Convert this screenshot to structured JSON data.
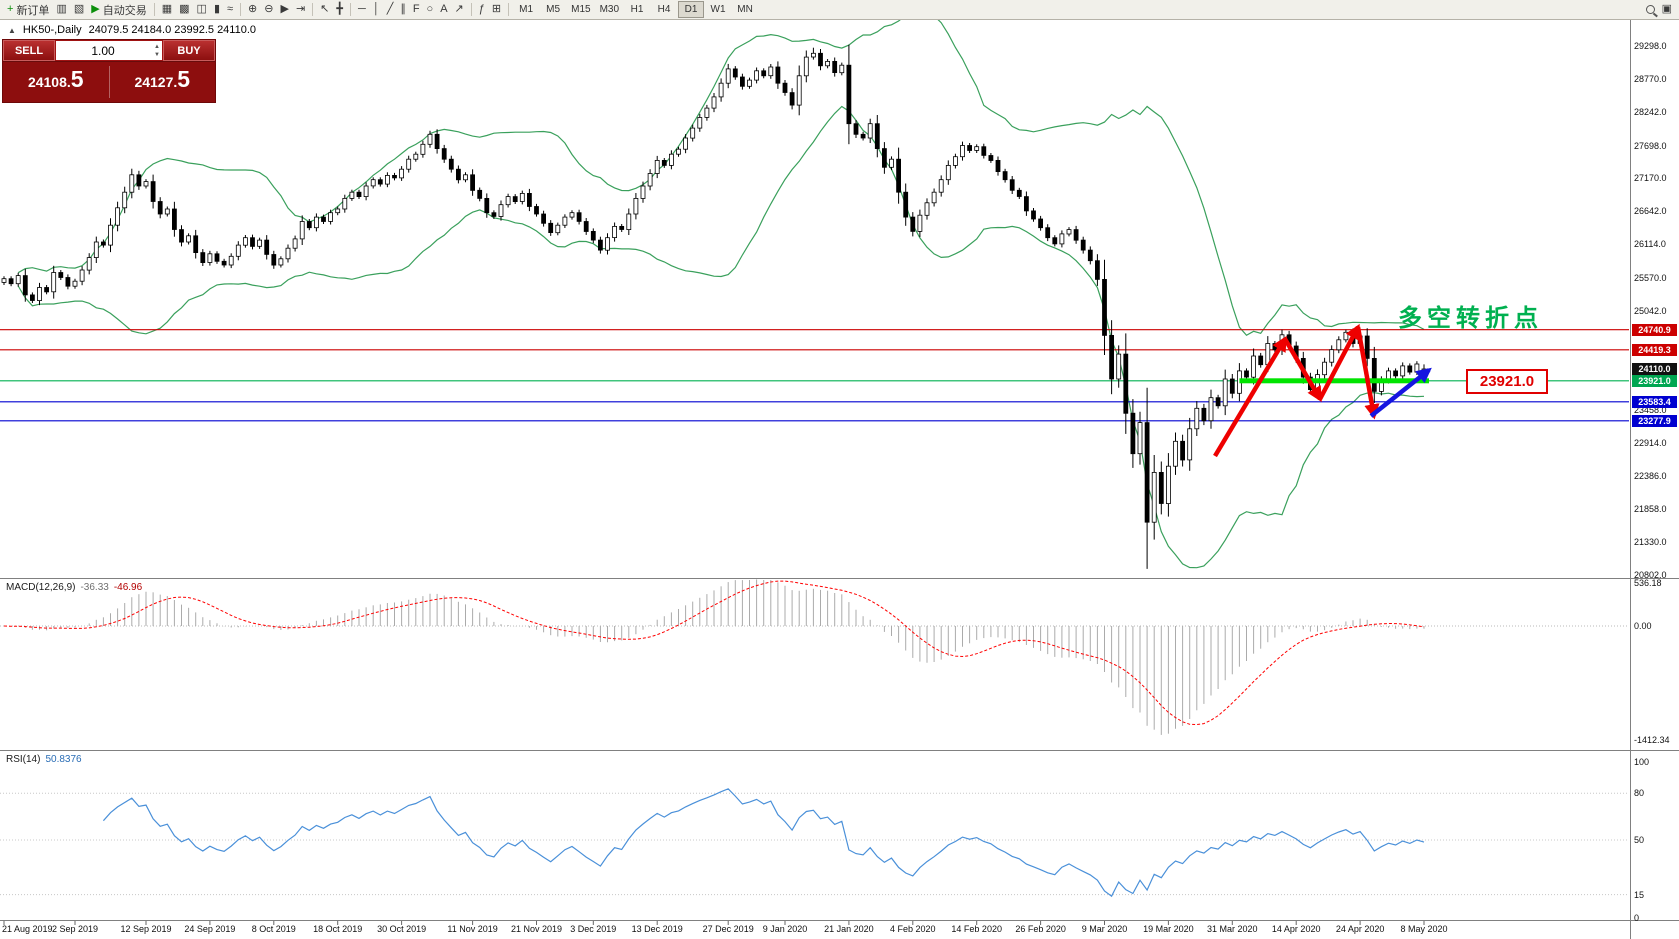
{
  "window": {
    "title_symbol": "HK50-,Daily",
    "ohlc": "24079.5 24184.0 23992.5 24110.0"
  },
  "toolbar": {
    "new_order_label": "新订单",
    "auto_trading_label": "自动交易",
    "timeframes": [
      "M1",
      "M5",
      "M15",
      "M30",
      "H1",
      "H4",
      "D1",
      "W1",
      "MN"
    ],
    "active_timeframe": "D1",
    "items": [
      {
        "type": "button",
        "name": "new-order-button",
        "icon": "plus-chart-icon",
        "glyph": "+",
        "glyph_color": "#0b8f0b",
        "label": "新订单"
      },
      {
        "type": "button",
        "name": "charts-icon",
        "glyph": "▥"
      },
      {
        "type": "button",
        "name": "profile-icon",
        "glyph": "▧"
      },
      {
        "type": "button",
        "name": "auto-trading-button",
        "icon": "play-icon",
        "glyph": "▶",
        "glyph_color": "#0b8f0b",
        "label": "自动交易"
      },
      {
        "type": "sep"
      },
      {
        "type": "button",
        "name": "tile-windows-icon",
        "glyph": "▦"
      },
      {
        "type": "button",
        "name": "cascade-windows-icon",
        "glyph": "▩"
      },
      {
        "type": "button",
        "name": "bar-chart-icon",
        "glyph": "◫"
      },
      {
        "type": "button",
        "name": "candlestick-chart-icon",
        "glyph": "▮"
      },
      {
        "type": "button",
        "name": "line-chart-icon",
        "glyph": "≈"
      },
      {
        "type": "sep"
      },
      {
        "type": "button",
        "name": "zoom-in-icon",
        "glyph": "⊕"
      },
      {
        "type": "button",
        "name": "zoom-out-icon",
        "glyph": "⊖"
      },
      {
        "type": "button",
        "name": "auto-scroll-icon",
        "glyph": "▶"
      },
      {
        "type": "button",
        "name": "chart-shift-icon",
        "glyph": "⇥"
      },
      {
        "type": "sep"
      },
      {
        "type": "button",
        "name": "cursor-icon",
        "glyph": "↖"
      },
      {
        "type": "button",
        "name": "crosshair-icon",
        "glyph": "╋"
      },
      {
        "type": "sep"
      },
      {
        "type": "button",
        "name": "horizontal-line-icon",
        "glyph": "─"
      },
      {
        "type": "button",
        "name": "vertical-line-icon",
        "glyph": "│"
      },
      {
        "type": "button",
        "name": "trendline-icon",
        "glyph": "╱"
      },
      {
        "type": "button",
        "name": "channel-icon",
        "glyph": "∥"
      },
      {
        "type": "button",
        "name": "fibonacci-icon",
        "glyph": "F"
      },
      {
        "type": "button",
        "name": "shapes-icon",
        "glyph": "○"
      },
      {
        "type": "button",
        "name": "text-icon",
        "glyph": "A"
      },
      {
        "type": "button",
        "name": "arrow-tools-icon",
        "glyph": "↗"
      },
      {
        "type": "sep"
      },
      {
        "type": "button",
        "name": "indicators-icon",
        "glyph": "ƒ"
      },
      {
        "type": "button",
        "name": "grid-icon",
        "glyph": "⊞"
      },
      {
        "type": "sep"
      },
      {
        "type": "timeframes"
      },
      {
        "type": "spacer"
      },
      {
        "type": "search"
      },
      {
        "type": "button",
        "name": "layout-icon",
        "glyph": "▣"
      }
    ]
  },
  "trade_panel": {
    "sell_label": "SELL",
    "buy_label": "BUY",
    "volume": "1.00",
    "sell_price": "24108.",
    "sell_big": "5",
    "buy_price": "24127.",
    "buy_big": "5"
  },
  "price_axis": {
    "labels": [
      "29298.0",
      "28770.0",
      "28242.0",
      "27698.0",
      "27170.0",
      "26642.0",
      "26114.0",
      "25570.0",
      "25042.0",
      "23458.0",
      "22914.0",
      "22386.0",
      "21858.0",
      "21330.0",
      "20802.0"
    ]
  },
  "levels": [
    {
      "value": 24740.9,
      "label": "24740.9",
      "line_color": "#cc0000",
      "tag_bg": "#cc0000"
    },
    {
      "value": 24419.3,
      "label": "24419.3",
      "line_color": "#cc0000",
      "tag_bg": "#cc0000"
    },
    {
      "value": 24110.0,
      "label": "24110.0",
      "line_color": null,
      "tag_bg": "#111111"
    },
    {
      "value": 23921.0,
      "label": "23921.0",
      "line_color": "#00b050",
      "tag_bg": "#00a651"
    },
    {
      "value": 23583.4,
      "label": "23583.4",
      "line_color": "#0000d0",
      "tag_bg": "#0000d0"
    },
    {
      "value": 23277.9,
      "label": "23277.9",
      "line_color": "#0000d0",
      "tag_bg": "#0000d0"
    }
  ],
  "annotations": {
    "turning_point_text": "多空转折点",
    "turning_point_color": "#00b050",
    "price_callout": "23921.0",
    "support_band": {
      "from_index": 174,
      "to_index": 200,
      "price": 23921.0,
      "color": "#00e400"
    },
    "red_path": [
      [
        1215,
        456
      ],
      [
        1285,
        339
      ],
      [
        1320,
        399
      ],
      [
        1358,
        327
      ],
      [
        1374,
        416
      ]
    ],
    "blue_arrow": [
      [
        1371,
        416
      ],
      [
        1429,
        370
      ]
    ],
    "red_color": "#ee0000",
    "blue_color": "#1515e0"
  },
  "indicators": {
    "macd": {
      "name": "MACD(12,26,9)",
      "value_main": "-36.33",
      "value_signal": "-46.96",
      "axis": [
        "536.18",
        "0.00",
        "-1412.34"
      ]
    },
    "rsi": {
      "name": "RSI(14)",
      "value": "50.8376",
      "axis": [
        "100",
        "80",
        "50",
        "15",
        "0"
      ],
      "levels": [
        80,
        50,
        15
      ]
    }
  },
  "chart_data": {
    "type": "candlestick",
    "symbol": "HK50",
    "timeframe": "Daily",
    "title": "HK50-,Daily",
    "ohlc_current": {
      "open": 24079.5,
      "high": 24184.0,
      "low": 23992.5,
      "close": 24110.0
    },
    "bid": 24108.5,
    "ask": 24127.5,
    "y_axis": {
      "top": 29298.0,
      "bottom": 20802.0
    },
    "bollinger": {
      "period": 20,
      "deviation": 2,
      "color": "#3aa05c"
    },
    "macd_axis": {
      "max": 536.18,
      "zero": 0.0,
      "min": -1412.34
    },
    "candles": {
      "closes": [
        25560,
        25480,
        25610,
        25300,
        25210,
        25420,
        25350,
        25660,
        25580,
        25440,
        25520,
        25700,
        25900,
        26150,
        26100,
        26420,
        26700,
        26950,
        27230,
        27050,
        27120,
        26800,
        26600,
        26680,
        26350,
        26150,
        26250,
        25980,
        25820,
        25960,
        25840,
        25780,
        25920,
        26100,
        26220,
        26080,
        26180,
        25950,
        25780,
        25880,
        26050,
        26200,
        26480,
        26380,
        26550,
        26480,
        26620,
        26680,
        26850,
        26950,
        26880,
        27050,
        27150,
        27080,
        27220,
        27180,
        27320,
        27480,
        27560,
        27720,
        27880,
        27650,
        27480,
        27320,
        27150,
        27230,
        26980,
        26850,
        26620,
        26560,
        26750,
        26880,
        26800,
        26930,
        26720,
        26600,
        26450,
        26300,
        26420,
        26550,
        26620,
        26480,
        26320,
        26180,
        26020,
        26220,
        26400,
        26350,
        26600,
        26850,
        27050,
        27250,
        27460,
        27380,
        27560,
        27640,
        27820,
        27980,
        28150,
        28300,
        28480,
        28700,
        28930,
        28800,
        28650,
        28750,
        28900,
        28820,
        28960,
        28700,
        28550,
        28350,
        28820,
        29120,
        29180,
        28980,
        29050,
        28870,
        28990,
        28050,
        27880,
        27820,
        28050,
        27650,
        27350,
        27480,
        26950,
        26550,
        26320,
        26580,
        26780,
        26950,
        27150,
        27380,
        27520,
        27700,
        27620,
        27680,
        27540,
        27460,
        27280,
        27150,
        26980,
        26880,
        26650,
        26520,
        26380,
        26220,
        26120,
        26280,
        26350,
        26180,
        26020,
        25850,
        25550,
        24650,
        23950,
        24350,
        23400,
        22750,
        23250,
        21650,
        22450,
        21950,
        22550,
        22950,
        22650,
        23150,
        23480,
        23280,
        23650,
        23520,
        23950,
        23720,
        24080,
        23980,
        24320,
        24180,
        24520,
        24420,
        24660,
        24480,
        24280,
        23980,
        23780,
        24020,
        24220,
        24420,
        24580,
        24700,
        24520,
        24640,
        24280,
        23750,
        23930,
        24080,
        24000,
        24160,
        24060,
        24190,
        24110
      ],
      "extremes": {
        "highest_index": 114,
        "highest_high": 29270,
        "lowest_index": 161,
        "lowest_low": 20900
      }
    },
    "dates": [
      {
        "label": "21 Aug 2019",
        "index": 0
      },
      {
        "label": "2 Sep 2019",
        "index": 10
      },
      {
        "label": "12 Sep 2019",
        "index": 20
      },
      {
        "label": "24 Sep 2019",
        "index": 29
      },
      {
        "label": "8 Oct 2019",
        "index": 38
      },
      {
        "label": "18 Oct 2019",
        "index": 47
      },
      {
        "label": "30 Oct 2019",
        "index": 56
      },
      {
        "label": "11 Nov 2019",
        "index": 66
      },
      {
        "label": "21 Nov 2019",
        "index": 75
      },
      {
        "label": "3 Dec 2019",
        "index": 83
      },
      {
        "label": "13 Dec 2019",
        "index": 92
      },
      {
        "label": "27 Dec 2019",
        "index": 102
      },
      {
        "label": "9 Jan 2020",
        "index": 110
      },
      {
        "label": "21 Jan 2020",
        "index": 119
      },
      {
        "label": "4 Feb 2020",
        "index": 128
      },
      {
        "label": "14 Feb 2020",
        "index": 137
      },
      {
        "label": "26 Feb 2020",
        "index": 146
      },
      {
        "label": "9 Mar 2020",
        "index": 155
      },
      {
        "label": "19 Mar 2020",
        "index": 164
      },
      {
        "label": "31 Mar 2020",
        "index": 173
      },
      {
        "label": "14 Apr 2020",
        "index": 182
      },
      {
        "label": "24 Apr 2020",
        "index": 191
      },
      {
        "label": "8 May 2020",
        "index": 200
      }
    ]
  }
}
